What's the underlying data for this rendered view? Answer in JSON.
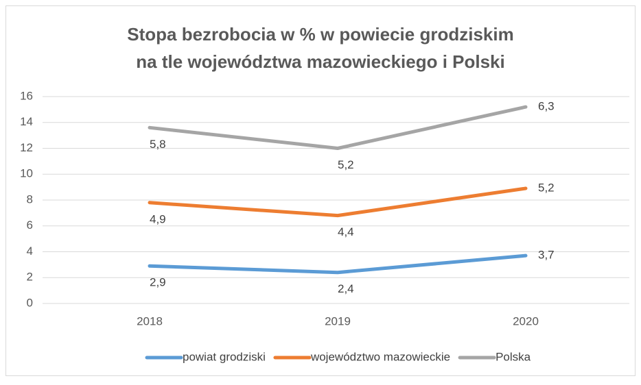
{
  "chart_data": {
    "type": "line",
    "stacked": true,
    "title": [
      "Stopa bezrobocia w % w powiecie grodziskim",
      "na tle województwa mazowieckiego i Polski"
    ],
    "categories": [
      "2018",
      "2019",
      "2020"
    ],
    "series": [
      {
        "name": "powiat grodziski",
        "color": "#5b9bd5",
        "values": [
          2.9,
          2.4,
          3.7
        ],
        "value_labels": [
          "2,9",
          "2,4",
          "3,7"
        ]
      },
      {
        "name": "województwo mazowieckie",
        "color": "#ed7d31",
        "values": [
          4.9,
          4.4,
          5.2
        ],
        "value_labels": [
          "4,9",
          "4,4",
          "5,2"
        ]
      },
      {
        "name": "Polska",
        "color": "#a5a5a5",
        "values": [
          5.8,
          5.2,
          6.3
        ],
        "value_labels": [
          "5,8",
          "5,2",
          "6,3"
        ]
      }
    ],
    "ylim": [
      0,
      16
    ],
    "yticks": [
      0,
      2,
      4,
      6,
      8,
      10,
      12,
      14,
      16
    ],
    "grid": true,
    "legend": "bottom"
  }
}
